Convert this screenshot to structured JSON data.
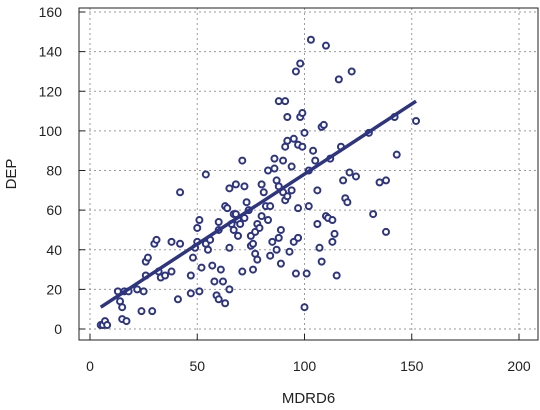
{
  "chart_data": {
    "type": "scatter",
    "xlabel": "MDRD6",
    "ylabel": "DEP",
    "xlim": [
      0,
      200
    ],
    "ylim": [
      0,
      160
    ],
    "xticks": [
      "0",
      "50",
      "100",
      "150",
      "200"
    ],
    "yticks": [
      "0",
      "20",
      "40",
      "60",
      "80",
      "100",
      "120",
      "140",
      "160"
    ],
    "grid": true,
    "grid_style": "dotted",
    "marker_color": "#2e3580",
    "line_color": "#2e3580",
    "regression_line": {
      "x": [
        5,
        152
      ],
      "y": [
        11,
        115
      ]
    },
    "points": [
      [
        5,
        2
      ],
      [
        6,
        2
      ],
      [
        7,
        4
      ],
      [
        8,
        2
      ],
      [
        13,
        19
      ],
      [
        14,
        14
      ],
      [
        15,
        5
      ],
      [
        15,
        11
      ],
      [
        17,
        4
      ],
      [
        16,
        19
      ],
      [
        18,
        19
      ],
      [
        22,
        20
      ],
      [
        24,
        9
      ],
      [
        25,
        19
      ],
      [
        26,
        27
      ],
      [
        26,
        34
      ],
      [
        27,
        36
      ],
      [
        29,
        9
      ],
      [
        30,
        43
      ],
      [
        31,
        45
      ],
      [
        32,
        29
      ],
      [
        33,
        26
      ],
      [
        35,
        27
      ],
      [
        38,
        29
      ],
      [
        38,
        44
      ],
      [
        41,
        15
      ],
      [
        42,
        69
      ],
      [
        42,
        43
      ],
      [
        47,
        18
      ],
      [
        47,
        27
      ],
      [
        48,
        36
      ],
      [
        49,
        41
      ],
      [
        50,
        44
      ],
      [
        50,
        51
      ],
      [
        51,
        55
      ],
      [
        51,
        19
      ],
      [
        52,
        31
      ],
      [
        54,
        43
      ],
      [
        54,
        78
      ],
      [
        55,
        40
      ],
      [
        56,
        45
      ],
      [
        57,
        32
      ],
      [
        58,
        24
      ],
      [
        59,
        17
      ],
      [
        60,
        50
      ],
      [
        60,
        54
      ],
      [
        60,
        15
      ],
      [
        61,
        30
      ],
      [
        62,
        24
      ],
      [
        63,
        13
      ],
      [
        63,
        62
      ],
      [
        64,
        61
      ],
      [
        65,
        71
      ],
      [
        65,
        20
      ],
      [
        65,
        41
      ],
      [
        66,
        53
      ],
      [
        67,
        50
      ],
      [
        67,
        58
      ],
      [
        68,
        73
      ],
      [
        68,
        58
      ],
      [
        69,
        47
      ],
      [
        69,
        55
      ],
      [
        70,
        53
      ],
      [
        71,
        29
      ],
      [
        71,
        85
      ],
      [
        72,
        72
      ],
      [
        72,
        56
      ],
      [
        73,
        64
      ],
      [
        74,
        60
      ],
      [
        75,
        42
      ],
      [
        75,
        47
      ],
      [
        76,
        43
      ],
      [
        76,
        30
      ],
      [
        77,
        38
      ],
      [
        77,
        49
      ],
      [
        78,
        35
      ],
      [
        78,
        53
      ],
      [
        79,
        51
      ],
      [
        80,
        57
      ],
      [
        80,
        73
      ],
      [
        81,
        69
      ],
      [
        82,
        62
      ],
      [
        83,
        55
      ],
      [
        83,
        80
      ],
      [
        84,
        62
      ],
      [
        84,
        37
      ],
      [
        85,
        44
      ],
      [
        86,
        81
      ],
      [
        86,
        86
      ],
      [
        87,
        75
      ],
      [
        87,
        40
      ],
      [
        88,
        46
      ],
      [
        88,
        72
      ],
      [
        88,
        115
      ],
      [
        89,
        50
      ],
      [
        89,
        33
      ],
      [
        90,
        69
      ],
      [
        90,
        85
      ],
      [
        91,
        92
      ],
      [
        91,
        65
      ],
      [
        91,
        115
      ],
      [
        92,
        95
      ],
      [
        92,
        107
      ],
      [
        92,
        67
      ],
      [
        93,
        39
      ],
      [
        94,
        82
      ],
      [
        94,
        70
      ],
      [
        95,
        44
      ],
      [
        95,
        96
      ],
      [
        96,
        130
      ],
      [
        96,
        28
      ],
      [
        97,
        61
      ],
      [
        97,
        46
      ],
      [
        97,
        93
      ],
      [
        98,
        134
      ],
      [
        98,
        107
      ],
      [
        99,
        109
      ],
      [
        99,
        92
      ],
      [
        100,
        99
      ],
      [
        100,
        11
      ],
      [
        101,
        28
      ],
      [
        102,
        62
      ],
      [
        102,
        80
      ],
      [
        103,
        146
      ],
      [
        104,
        90
      ],
      [
        105,
        85
      ],
      [
        106,
        70
      ],
      [
        106,
        53
      ],
      [
        107,
        41
      ],
      [
        108,
        102
      ],
      [
        108,
        34
      ],
      [
        109,
        103
      ],
      [
        110,
        143
      ],
      [
        110,
        57
      ],
      [
        111,
        56
      ],
      [
        112,
        86
      ],
      [
        113,
        55
      ],
      [
        113,
        44
      ],
      [
        114,
        48
      ],
      [
        115,
        27
      ],
      [
        116,
        126
      ],
      [
        117,
        92
      ],
      [
        118,
        75
      ],
      [
        119,
        66
      ],
      [
        120,
        64
      ],
      [
        121,
        79
      ],
      [
        122,
        130
      ],
      [
        124,
        77
      ],
      [
        130,
        99
      ],
      [
        132,
        58
      ],
      [
        135,
        74
      ],
      [
        138,
        75
      ],
      [
        138,
        49
      ],
      [
        142,
        107
      ],
      [
        143,
        88
      ],
      [
        152,
        105
      ]
    ]
  }
}
